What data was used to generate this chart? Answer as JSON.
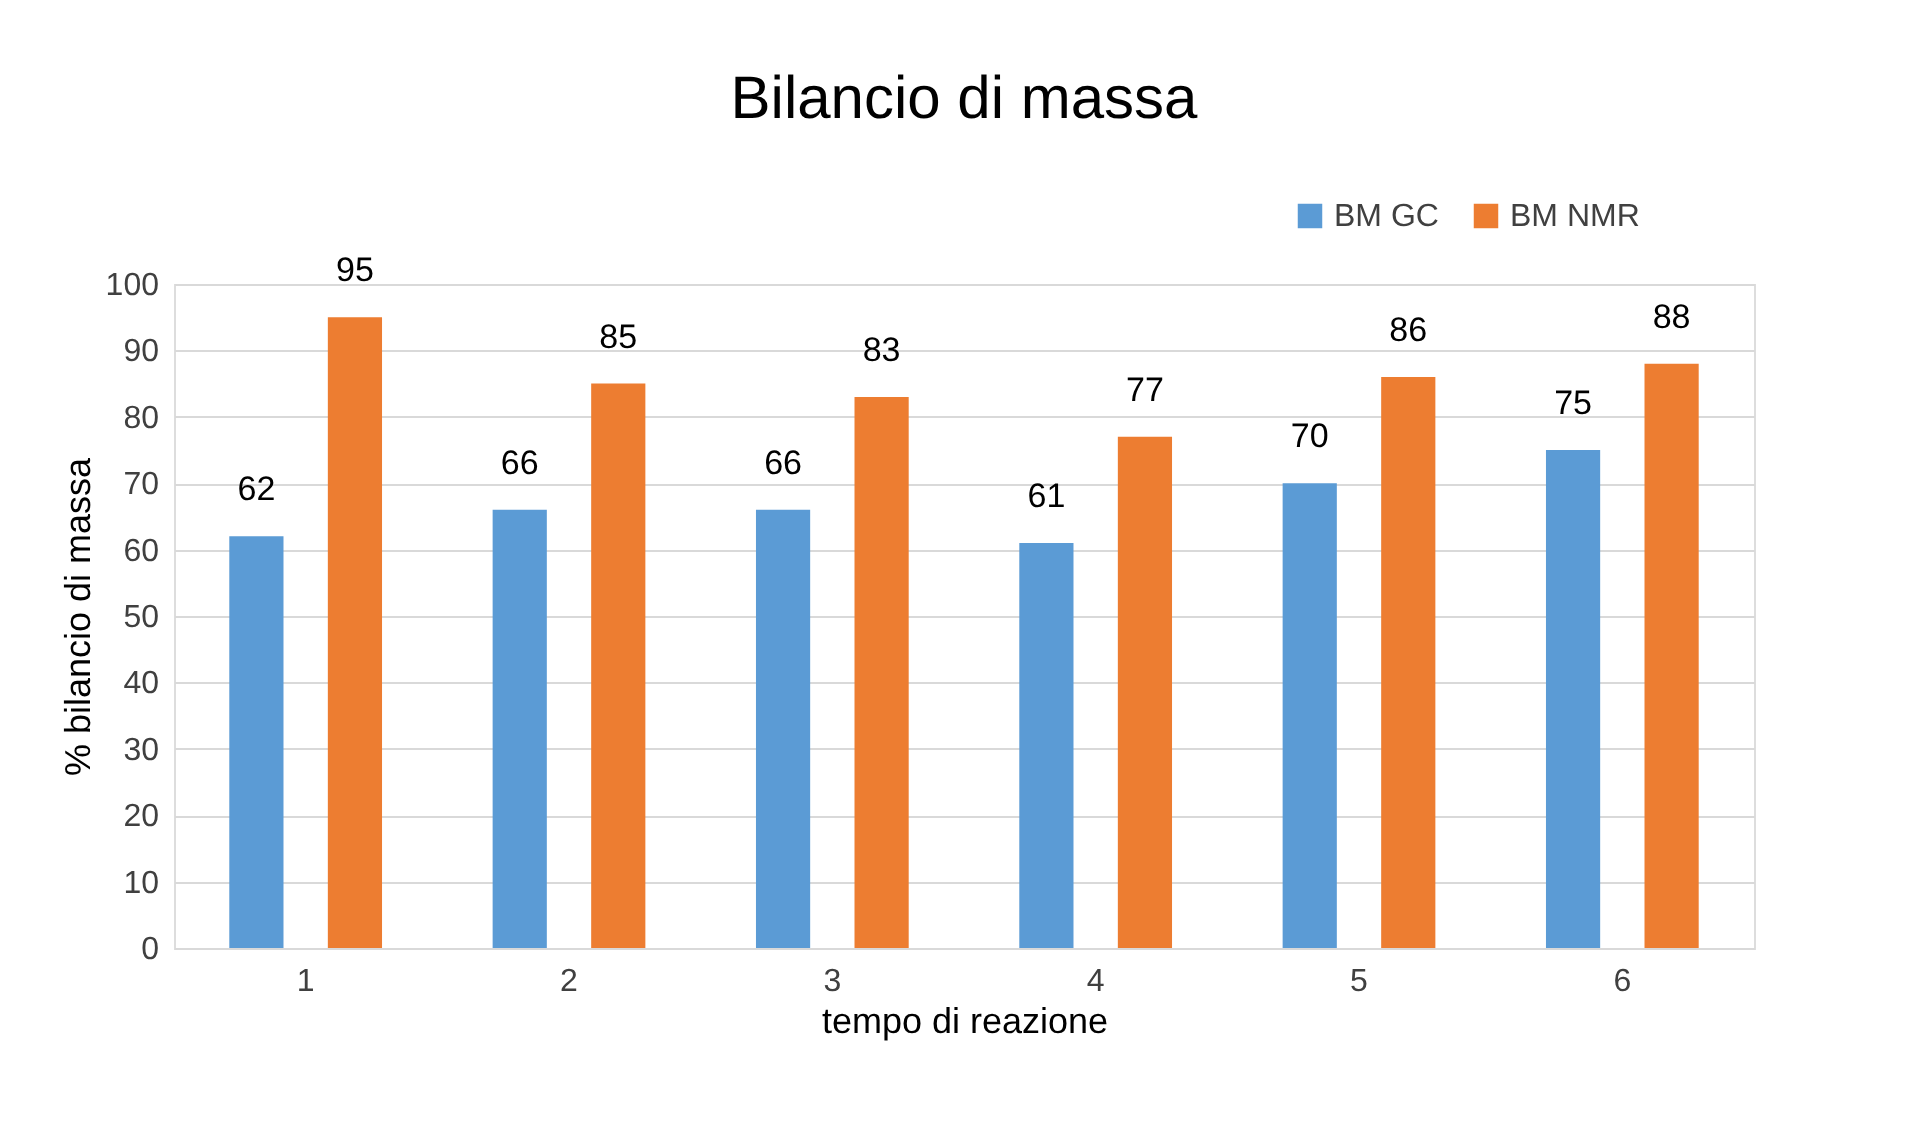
{
  "chart_data": {
    "type": "bar",
    "title": "Bilancio di massa",
    "xlabel": "tempo di reazione",
    "ylabel": "% bilancio di massa",
    "categories": [
      "1",
      "2",
      "3",
      "4",
      "5",
      "6"
    ],
    "series": [
      {
        "name": "BM GC",
        "color": "#5b9bd5",
        "values": [
          62,
          66,
          66,
          61,
          70,
          75
        ]
      },
      {
        "name": "BM NMR",
        "color": "#ed7d31",
        "values": [
          95,
          85,
          83,
          77,
          86,
          88
        ]
      }
    ],
    "ylim": [
      0,
      100
    ],
    "yticks": [
      0,
      10,
      20,
      30,
      40,
      50,
      60,
      70,
      80,
      90,
      100
    ],
    "grid": "y",
    "legend": "top right",
    "data_labels": true
  }
}
